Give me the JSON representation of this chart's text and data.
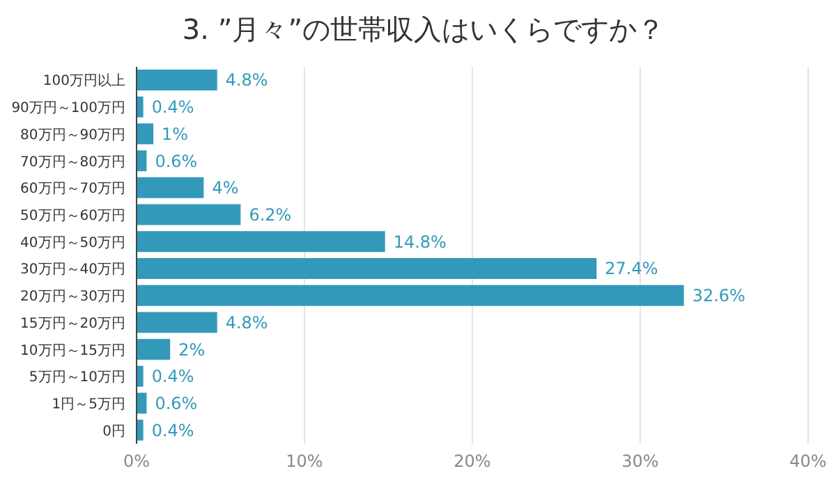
{
  "chart_data": {
    "type": "bar",
    "orientation": "horizontal",
    "title": "3. ”月々”の世帯収入はいくらですか？",
    "categories": [
      "100万円以上",
      "90万円～100万円",
      "80万円～90万円",
      "70万円～80万円",
      "60万円～70万円",
      "50万円～60万円",
      "40万円～50万円",
      "30万円～40万円",
      "20万円～30万円",
      "15万円～20万円",
      "10万円～15万円",
      "5万円～10万円",
      "1円～5万円",
      "0円"
    ],
    "values": [
      4.8,
      0.4,
      1,
      0.6,
      4,
      6.2,
      14.8,
      27.4,
      32.6,
      4.8,
      2,
      0.4,
      0.6,
      0.4
    ],
    "value_labels": [
      "4.8%",
      "0.4%",
      "1%",
      "0.6%",
      "4%",
      "6.2%",
      "14.8%",
      "27.4%",
      "32.6%",
      "4.8%",
      "2%",
      "0.4%",
      "0.6%",
      "0.4%"
    ],
    "color": "#3399bb",
    "xlim": [
      0,
      40
    ],
    "xticks": [
      {
        "value": 0,
        "label": "0%"
      },
      {
        "value": 10,
        "label": "10%"
      },
      {
        "value": 20,
        "label": "20%"
      },
      {
        "value": 30,
        "label": "30%"
      },
      {
        "value": 40,
        "label": "40%"
      }
    ],
    "grid": "x",
    "legend": false
  }
}
